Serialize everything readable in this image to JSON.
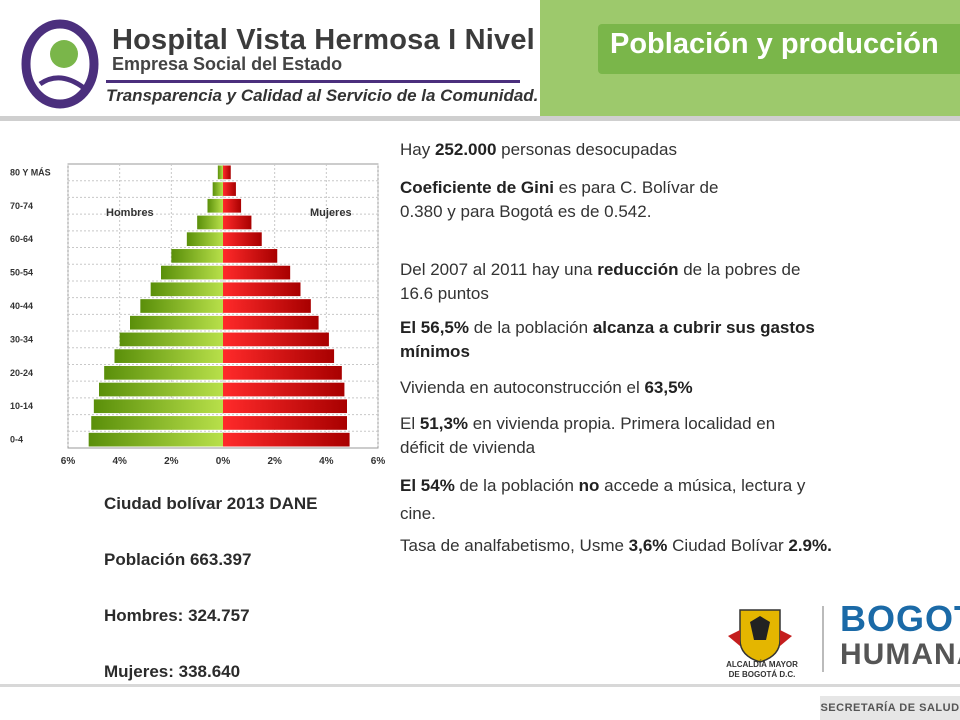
{
  "header": {
    "hospital_name": "Hospital Vista Hermosa I Nivel",
    "hospital_subtitle": "Empresa Social del Estado",
    "tagline": "Transparencia y Calidad al Servicio de la Comunidad.",
    "slide_title": "Población y producción"
  },
  "colors": {
    "green_bar": "#8bc21c",
    "red_bar": "#d80f0f",
    "banner": "#9dc96c",
    "banner_dark": "#7ab64a",
    "brand_purple": "#4b2f7d"
  },
  "chart_data": {
    "type": "bar",
    "orientation": "horizontal-population-pyramid",
    "categories": [
      "0-4",
      "5-9",
      "10-14",
      "15-19",
      "20-24",
      "25-29",
      "30-34",
      "35-39",
      "40-44",
      "45-49",
      "50-54",
      "55-59",
      "60-64",
      "65-69",
      "70-74",
      "75-79",
      "80 Y MÁS"
    ],
    "tick_labels": [
      "0-4",
      "10-14",
      "20-24",
      "30-34",
      "40-44",
      "50-54",
      "60-64",
      "70-74",
      "80 Y MÁS"
    ],
    "series": [
      {
        "name": "Hombres",
        "values": [
          5.2,
          5.1,
          5.0,
          4.8,
          4.6,
          4.2,
          4.0,
          3.6,
          3.2,
          2.8,
          2.4,
          2.0,
          1.4,
          1.0,
          0.6,
          0.4,
          0.2
        ]
      },
      {
        "name": "Mujeres",
        "values": [
          4.9,
          4.8,
          4.8,
          4.7,
          4.6,
          4.3,
          4.1,
          3.7,
          3.4,
          3.0,
          2.6,
          2.1,
          1.5,
          1.1,
          0.7,
          0.5,
          0.3
        ]
      }
    ],
    "x_ticks": [
      "6%",
      "4%",
      "2%",
      "0%",
      "2%",
      "4%",
      "6%"
    ],
    "xlim": [
      -6,
      6
    ],
    "grid": true
  },
  "stats": {
    "source": "Ciudad bolívar 2013 DANE",
    "population": "Población 663.397",
    "men": "Hombres: 324.757",
    "women": "Mujeres: 338.640"
  },
  "facts": {
    "f1": {
      "a": "Hay ",
      "b": "252.000",
      "c": " personas desocupadas"
    },
    "f2": {
      "a": "Coeficiente de Gini",
      "b": " es para C. Bolívar de",
      "c": "0.380 y para Bogotá es de 0.542."
    },
    "f3": {
      "a": "Del 2007 al 2011 hay una ",
      "b": "reducción",
      "c": " de la pobres de",
      "d": "16.6 puntos"
    },
    "f4": {
      "a": "El 56,5%",
      "b": " de la población ",
      "c": "alcanza a cubrir sus gastos",
      "d": "mínimos"
    },
    "f5": {
      "a": "Vivienda en autoconstrucción el ",
      "b": "63,5%"
    },
    "f6": {
      "a": "El ",
      "b": "51,3%",
      "c": " en vivienda propia. Primera localidad en",
      "d": "déficit de vivienda"
    },
    "f7": {
      "a": "El 54%",
      "b": " de la población ",
      "c": "no",
      "d": " accede a música, lectura y",
      "e": "cine."
    },
    "f8": {
      "a": "Tasa de analfabetismo, Usme ",
      "b": "3,6%",
      "c": " Ciudad Bolívar ",
      "d": "2.9%."
    }
  },
  "footer": {
    "secretaria": "SECRETARÍA DE SALUD",
    "alcaldia_line1": "ALCALDÍA MAYOR",
    "alcaldia_line2": "DE BOGOTÁ D.C.",
    "bogota": "BOGOTÁ",
    "humana": "HUMANA"
  }
}
